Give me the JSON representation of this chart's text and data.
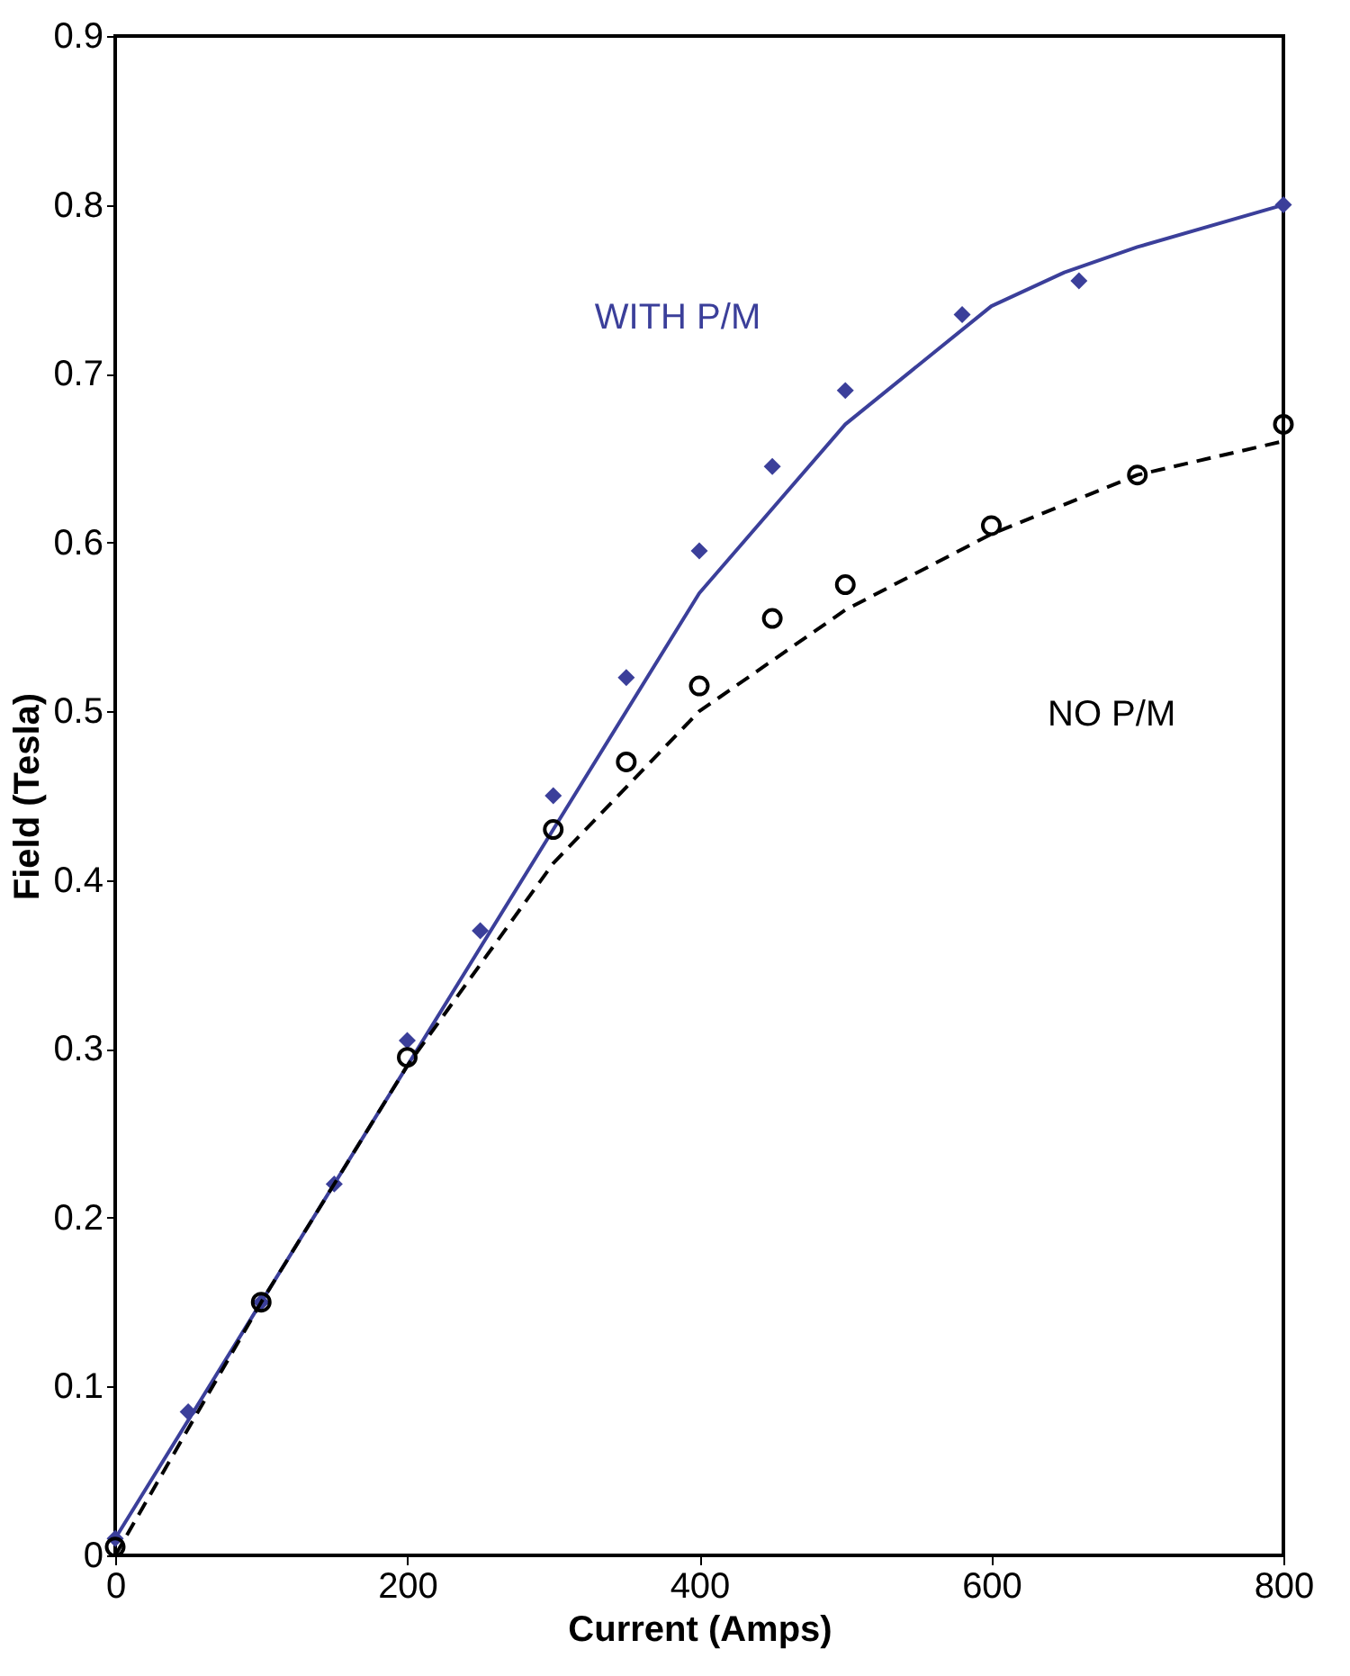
{
  "chart_data": {
    "type": "scatter",
    "xlabel": "Current (Amps)",
    "ylabel": "Field (Tesla)",
    "xlim": [
      0,
      800
    ],
    "ylim": [
      0,
      0.9
    ],
    "xticks": [
      0,
      200,
      400,
      600,
      800
    ],
    "yticks": [
      0,
      0.1,
      0.2,
      0.3,
      0.4,
      0.5,
      0.6,
      0.7,
      0.8,
      0.9
    ],
    "grid": false,
    "series": [
      {
        "name": "WITH P/M",
        "color": "#3b3f9a",
        "marker": "diamond",
        "x": [
          0,
          50,
          100,
          150,
          200,
          250,
          300,
          350,
          400,
          450,
          500,
          580,
          660,
          800
        ],
        "values": [
          0.01,
          0.085,
          0.15,
          0.22,
          0.305,
          0.37,
          0.45,
          0.52,
          0.595,
          0.645,
          0.69,
          0.735,
          0.755,
          0.8
        ]
      },
      {
        "type": "line",
        "color": "#3b3f9a",
        "line_style": "solid",
        "x": [
          0,
          100,
          200,
          300,
          400,
          500,
          600,
          650,
          700,
          800
        ],
        "values": [
          0.01,
          0.15,
          0.29,
          0.43,
          0.57,
          0.67,
          0.74,
          0.76,
          0.775,
          0.8
        ]
      },
      {
        "name": "NO P/M",
        "color": "#000000",
        "marker": "circle",
        "x": [
          0,
          100,
          200,
          300,
          350,
          400,
          450,
          500,
          600,
          700,
          800
        ],
        "values": [
          0.005,
          0.15,
          0.295,
          0.43,
          0.47,
          0.515,
          0.555,
          0.575,
          0.61,
          0.64,
          0.67
        ]
      },
      {
        "type": "line",
        "color": "#000000",
        "line_style": "dashed",
        "x": [
          0,
          100,
          200,
          300,
          400,
          500,
          600,
          700,
          800
        ],
        "values": [
          0,
          0.15,
          0.29,
          0.41,
          0.5,
          0.56,
          0.605,
          0.64,
          0.66
        ]
      }
    ]
  }
}
